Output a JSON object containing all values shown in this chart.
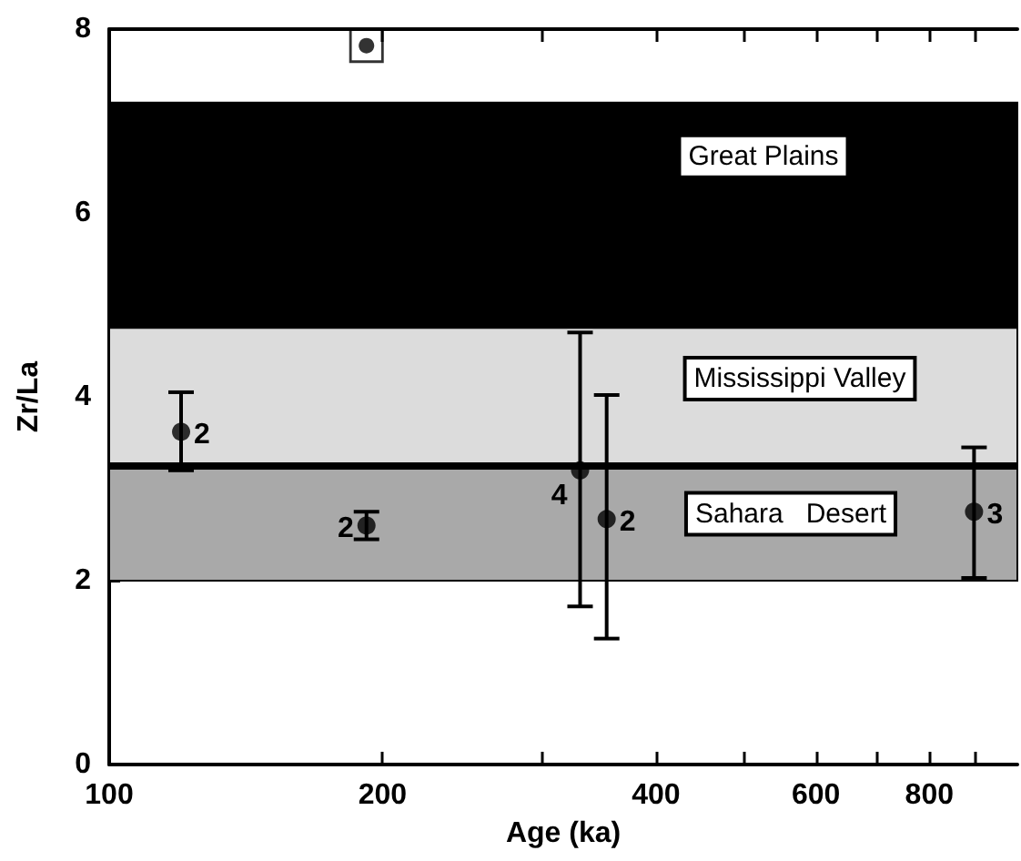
{
  "chart_data": {
    "type": "scatter",
    "xlabel": "Age (ka)",
    "ylabel": "Zr/La",
    "log": "x",
    "xlim": [
      100,
      1000
    ],
    "xticks": [
      100,
      200,
      {
        "value": 300,
        "label": null
      },
      400,
      {
        "value": 500,
        "label": null
      },
      600,
      {
        "value": 700,
        "label": null
      },
      800,
      {
        "value": 900,
        "label": null
      }
    ],
    "ylim": [
      0,
      8
    ],
    "yticks": [
      0,
      2,
      4,
      6,
      8
    ],
    "grid": false,
    "series": [
      {
        "color": "#000000",
        "marker": "circle",
        "x": [
          120,
          192,
          330,
          353,
          896
        ],
        "values": [
          3.62,
          2.6,
          3.2,
          2.67,
          2.75
        ],
        "errors": [
          [
            3.2,
            4.05
          ],
          [
            2.45,
            2.75
          ],
          [
            1.72,
            4.7
          ],
          [
            1.37,
            4.02
          ],
          [
            2.03,
            3.45
          ]
        ]
      },
      {
        "color": "#000000",
        "marker": "square",
        "x": [
          192
        ],
        "values": [
          7.82
        ]
      }
    ],
    "bands": [
      {
        "axis": "y",
        "from": 4.75,
        "to": 7.2,
        "label": "Great Plains",
        "color": "#000000"
      },
      {
        "axis": "y",
        "from": 3.25,
        "to": 4.75,
        "label": "Mississippi Valley",
        "color": "#dcdcdc"
      },
      {
        "axis": "y",
        "from": 2.0,
        "to": 3.25,
        "label": "Sahara   Desert",
        "color": "#a9a9a9"
      }
    ],
    "ref_lines": [
      {
        "axis": "y",
        "value": 3.25,
        "color": "#000000"
      }
    ],
    "annotations": [
      {
        "text": "2",
        "x": 120,
        "y": 3.62
      },
      {
        "text": "2",
        "x": 192,
        "y": 2.6
      },
      {
        "text": "4",
        "x": 330,
        "y": 3.2
      },
      {
        "text": "2",
        "x": 353,
        "y": 2.67
      },
      {
        "text": "3",
        "x": 896,
        "y": 2.75
      }
    ]
  }
}
